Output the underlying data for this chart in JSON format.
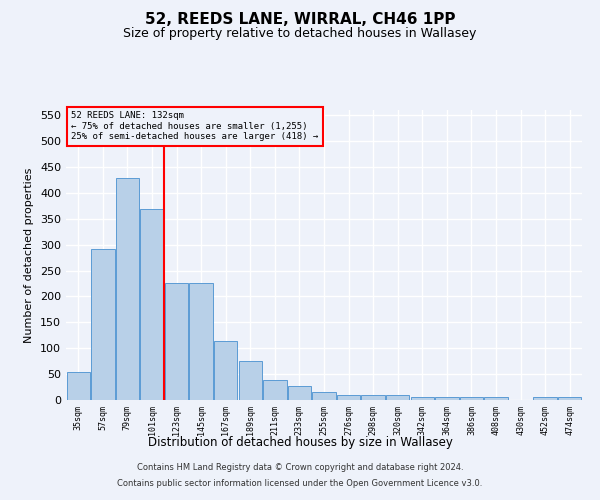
{
  "title1": "52, REEDS LANE, WIRRAL, CH46 1PP",
  "title2": "Size of property relative to detached houses in Wallasey",
  "xlabel": "Distribution of detached houses by size in Wallasey",
  "ylabel": "Number of detached properties",
  "categories": [
    "35sqm",
    "57sqm",
    "79sqm",
    "101sqm",
    "123sqm",
    "145sqm",
    "167sqm",
    "189sqm",
    "211sqm",
    "233sqm",
    "255sqm",
    "276sqm",
    "298sqm",
    "320sqm",
    "342sqm",
    "364sqm",
    "386sqm",
    "408sqm",
    "430sqm",
    "452sqm",
    "474sqm"
  ],
  "values": [
    55,
    292,
    428,
    368,
    225,
    225,
    113,
    75,
    38,
    28,
    15,
    10,
    10,
    10,
    5,
    5,
    5,
    5,
    0,
    5,
    5
  ],
  "bar_color": "#b8d0e8",
  "bar_edge_color": "#5b9bd5",
  "ref_line_x": 3.5,
  "ref_line_label": "52 REEDS LANE: 132sqm",
  "annotation_line1": "← 75% of detached houses are smaller (1,255)",
  "annotation_line2": "25% of semi-detached houses are larger (418) →",
  "ylim": [
    0,
    560
  ],
  "yticks": [
    0,
    50,
    100,
    150,
    200,
    250,
    300,
    350,
    400,
    450,
    500,
    550
  ],
  "footer1": "Contains HM Land Registry data © Crown copyright and database right 2024.",
  "footer2": "Contains public sector information licensed under the Open Government Licence v3.0.",
  "bg_color": "#eef2fa",
  "grid_color": "#ffffff"
}
